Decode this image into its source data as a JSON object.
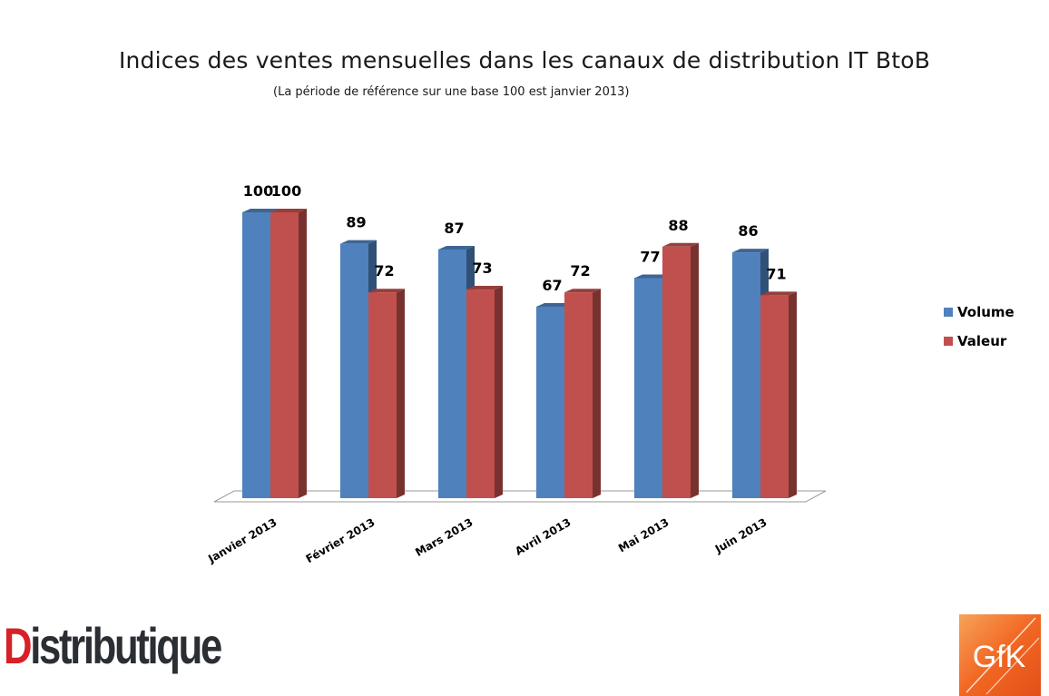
{
  "chart_data": {
    "type": "bar",
    "title": "Indices des ventes mensuelles dans les canaux de distribution IT BtoB",
    "subtitle": "(La période de référence sur une base 100 est janvier 2013)",
    "categories": [
      "Janvier 2013",
      "Février 2013",
      "Mars 2013",
      "Avril 2013",
      "Mai 2013",
      "Juin 2013"
    ],
    "series": [
      {
        "name": "Volume",
        "values": [
          100,
          89,
          87,
          67,
          77,
          86
        ],
        "color": "#4f81bd"
      },
      {
        "name": "Valeur",
        "values": [
          100,
          72,
          73,
          72,
          88,
          71
        ],
        "color": "#c0504d"
      }
    ],
    "ylim": [
      0,
      100
    ],
    "legend": "right",
    "grid": false,
    "style": "3d-column"
  },
  "logos": {
    "left": {
      "first_letter": "D",
      "rest": "istributique"
    },
    "right": {
      "text": "GfK",
      "color": "#f26722"
    }
  }
}
